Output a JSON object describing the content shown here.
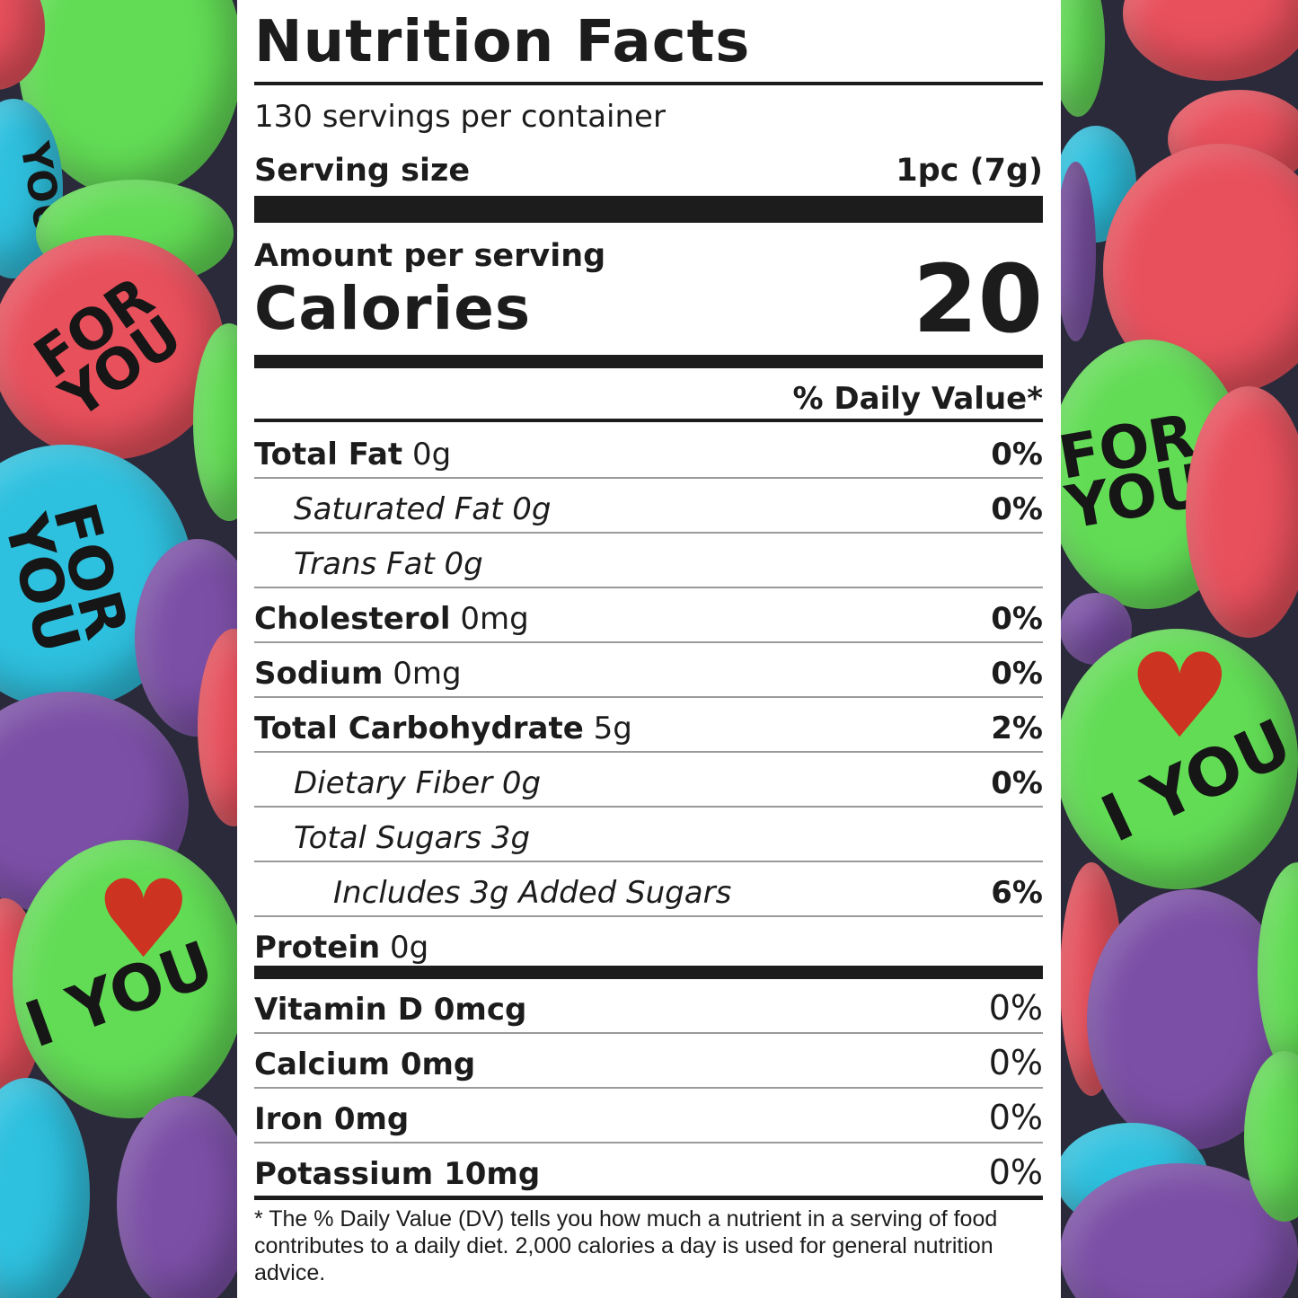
{
  "background": {
    "description_colors": [
      "#e8505c",
      "#62dc55",
      "#2ec1df",
      "#7b4fa6"
    ],
    "stamps": {
      "for_you_line1": "FOR",
      "for_you_line2": "YOU",
      "i_love": "I",
      "you": "YOU"
    }
  },
  "label": {
    "title": "Nutrition Facts",
    "servings_per_container": "130 servings per container",
    "serving_size_label": "Serving size",
    "serving_size_value": "1pc (7g)",
    "amount_per_serving": "Amount per serving",
    "calories_label": "Calories",
    "calories_value": "20",
    "daily_value_header": "% Daily Value*",
    "nutrients": [
      {
        "name": "Total Fat",
        "amount": "0g",
        "dv": "0%"
      },
      {
        "name": "Saturated Fat 0g",
        "dv": "0%"
      },
      {
        "name": "Trans Fat 0g",
        "dv": ""
      },
      {
        "name": "Cholesterol",
        "amount": "0mg",
        "dv": "0%"
      },
      {
        "name": "Sodium",
        "amount": "0mg",
        "dv": "0%"
      },
      {
        "name": "Total Carbohydrate",
        "amount": "5g",
        "dv": "2%"
      },
      {
        "name": "Dietary Fiber 0g",
        "dv": "0%"
      },
      {
        "name": "Total Sugars 3g",
        "dv": ""
      },
      {
        "name": "Includes 3g Added Sugars",
        "dv": "6%"
      },
      {
        "name": "Protein",
        "amount": "0g",
        "dv": ""
      }
    ],
    "vitamins": [
      {
        "name": "Vitamin D 0mcg",
        "dv": "0%"
      },
      {
        "name": "Calcium 0mg",
        "dv": "0%"
      },
      {
        "name": "Iron 0mg",
        "dv": "0%"
      },
      {
        "name": "Potassium 10mg",
        "dv": "0%"
      }
    ],
    "footnote": "* The % Daily Value (DV) tells you how much a nutrient in a serving of food contributes to a daily diet. 2,000 calories a day is used for general nutrition advice."
  }
}
